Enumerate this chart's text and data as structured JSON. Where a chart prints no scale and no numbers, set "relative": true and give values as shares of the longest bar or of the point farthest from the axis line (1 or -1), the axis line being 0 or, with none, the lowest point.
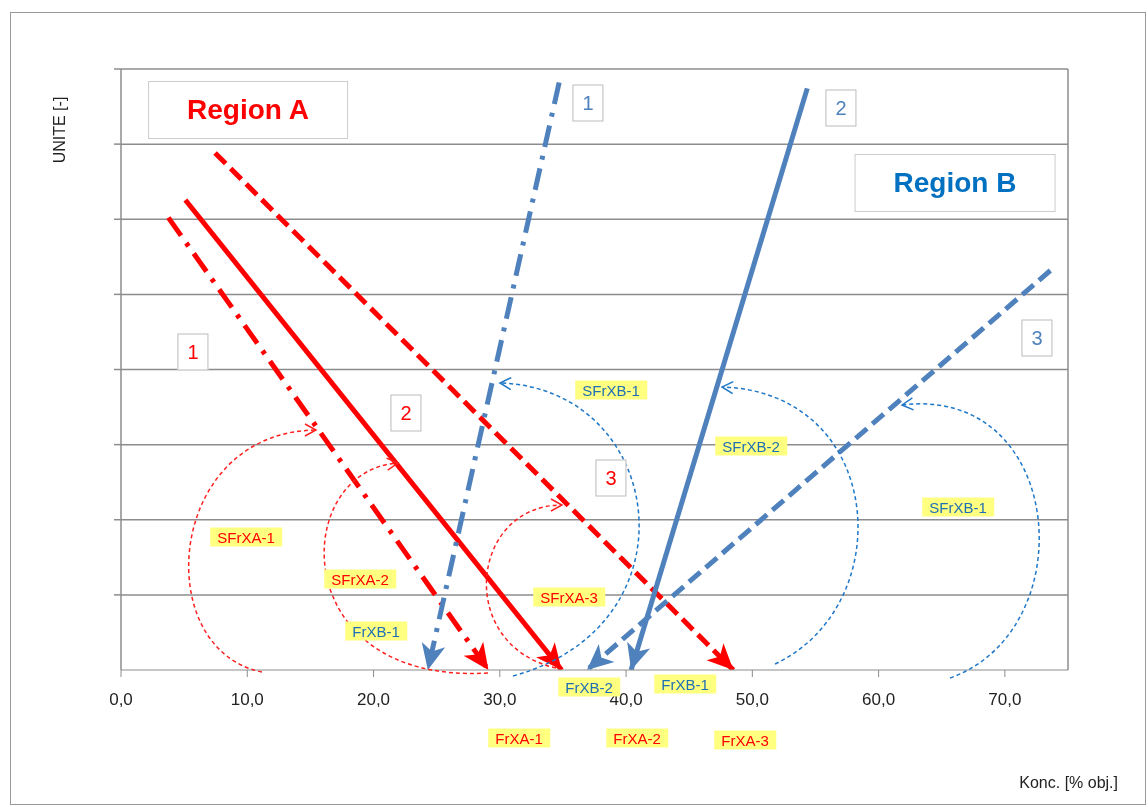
{
  "chart_data": {
    "type": "line",
    "xlabel": "Konc. [% obj.]",
    "ylabel": "UNITE [-]",
    "relative": true,
    "xlim": [
      0,
      75
    ],
    "xticks": [
      {
        "value": 0,
        "label": "0,0"
      },
      {
        "value": 10,
        "label": "10,0"
      },
      {
        "value": 20,
        "label": "20,0"
      },
      {
        "value": 30,
        "label": "30,0"
      },
      {
        "value": 40,
        "label": "40,0"
      },
      {
        "value": 50,
        "label": "50,0"
      },
      {
        "value": 60,
        "label": "60,0"
      },
      {
        "value": 70,
        "label": "70,0"
      }
    ],
    "grid": "y",
    "legend": false,
    "marker": "none",
    "series": [
      {
        "name": "1",
        "color": "#ff0000",
        "line_style": "dashdot",
        "x": [
          3.75,
          29.1
        ],
        "values": [
          0.77,
          0
        ]
      },
      {
        "name": "2",
        "color": "#ff0000",
        "line_style": "solid",
        "x": [
          5.1,
          34.9
        ],
        "values": [
          0.8,
          0
        ]
      },
      {
        "name": "3",
        "color": "#ff0000",
        "line_style": "dashed",
        "x": [
          7.45,
          48.5
        ],
        "values": [
          0.88,
          0
        ]
      },
      {
        "name": "1",
        "color": "#4f81bd",
        "line_style": "dashdot",
        "x": [
          34.7,
          24.3
        ],
        "values": [
          1,
          0
        ]
      },
      {
        "name": "2",
        "color": "#4f81bd",
        "line_style": "solid",
        "x": [
          54.35,
          40.4
        ],
        "values": [
          0.99,
          0
        ]
      },
      {
        "name": "3",
        "color": "#4f81bd",
        "line_style": "dashed",
        "x": [
          73.6,
          36.9
        ],
        "values": [
          0.68,
          0
        ]
      }
    ],
    "annotations": [
      "Region A",
      "Region B",
      "SFrXA-1",
      "SFrXA-2",
      "SFrXA-3",
      "SFrXB-1",
      "SFrXB-2",
      "SFrXB-1",
      "FrXB-1",
      "FrXB-2",
      "FrXB-1",
      "FrXA-1",
      "FrXA-2",
      "FrXA-3"
    ]
  }
}
